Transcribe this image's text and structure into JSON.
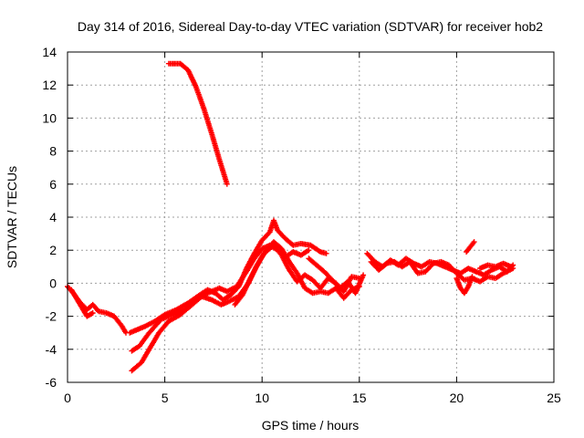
{
  "chart_data": {
    "type": "scatter",
    "title": "Day 314 of 2016, Sidereal Day-to-day VTEC variation (SDTVAR) for receiver hob2",
    "xlabel": "GPS time / hours",
    "ylabel": "SDTVAR / TECUs",
    "xlim": [
      0,
      25
    ],
    "ylim": [
      -6,
      14
    ],
    "x_ticks": [
      0,
      5,
      10,
      15,
      20,
      25
    ],
    "x_tick_labels": [
      "0",
      "5",
      "10",
      "15",
      "20",
      "25"
    ],
    "y_ticks": [
      -6,
      -4,
      -2,
      0,
      2,
      4,
      6,
      8,
      10,
      12,
      14
    ],
    "y_tick_labels": [
      "-6",
      "-4",
      "-2",
      "0",
      "2",
      "4",
      "6",
      "8",
      "10",
      "12",
      "14"
    ],
    "grid": true,
    "color": "#ff0000",
    "series": [
      {
        "name": "segment-1",
        "points": [
          [
            5.2,
            13.3
          ],
          [
            5.8,
            13.3
          ],
          [
            6.2,
            12.9
          ],
          [
            6.6,
            11.9
          ],
          [
            7.0,
            10.6
          ],
          [
            7.4,
            9.1
          ],
          [
            7.8,
            7.5
          ],
          [
            8.2,
            6.0
          ]
        ]
      },
      {
        "name": "segment-2",
        "points": [
          [
            0.0,
            -0.2
          ],
          [
            0.3,
            -0.6
          ],
          [
            0.6,
            -1.1
          ],
          [
            1.0,
            -1.6
          ],
          [
            1.3,
            -1.3
          ],
          [
            1.6,
            -1.7
          ],
          [
            2.0,
            -1.8
          ],
          [
            2.4,
            -2.0
          ],
          [
            2.8,
            -2.6
          ],
          [
            3.0,
            -3.0
          ]
        ]
      },
      {
        "name": "segment-3",
        "points": [
          [
            0.2,
            -0.4
          ],
          [
            0.5,
            -1.0
          ],
          [
            0.8,
            -1.6
          ],
          [
            1.0,
            -2.0
          ],
          [
            1.3,
            -1.8
          ]
        ]
      },
      {
        "name": "segment-4",
        "points": [
          [
            3.2,
            -3.0
          ],
          [
            3.6,
            -2.8
          ],
          [
            4.0,
            -2.6
          ],
          [
            4.5,
            -2.3
          ],
          [
            5.0,
            -1.9
          ],
          [
            5.6,
            -1.6
          ],
          [
            6.2,
            -1.2
          ],
          [
            6.8,
            -0.7
          ],
          [
            7.2,
            -0.4
          ],
          [
            7.6,
            -0.6
          ],
          [
            8.0,
            -1.0
          ],
          [
            8.4,
            -0.7
          ],
          [
            8.8,
            -0.2
          ],
          [
            9.2,
            0.9
          ],
          [
            9.6,
            1.8
          ],
          [
            10.0,
            2.6
          ],
          [
            10.4,
            3.1
          ],
          [
            10.6,
            3.8
          ],
          [
            10.8,
            3.2
          ],
          [
            11.2,
            2.7
          ],
          [
            11.6,
            2.3
          ],
          [
            12.0,
            2.4
          ],
          [
            12.5,
            2.3
          ],
          [
            13.0,
            1.9
          ],
          [
            13.3,
            1.8
          ]
        ]
      },
      {
        "name": "segment-5",
        "points": [
          [
            3.3,
            -4.1
          ],
          [
            3.7,
            -3.8
          ],
          [
            4.2,
            -3.0
          ],
          [
            4.8,
            -2.2
          ],
          [
            5.4,
            -1.9
          ],
          [
            6.0,
            -1.6
          ],
          [
            6.6,
            -1.0
          ],
          [
            7.2,
            -0.6
          ],
          [
            7.8,
            -0.3
          ],
          [
            8.2,
            -0.5
          ],
          [
            8.7,
            -0.2
          ],
          [
            9.2,
            0.7
          ],
          [
            9.6,
            1.5
          ],
          [
            10.0,
            2.1
          ],
          [
            10.4,
            2.3
          ],
          [
            10.8,
            2.0
          ],
          [
            11.2,
            1.6
          ],
          [
            11.6,
            1.9
          ],
          [
            12.0,
            1.7
          ],
          [
            12.4,
            2.0
          ]
        ]
      },
      {
        "name": "segment-6",
        "points": [
          [
            3.3,
            -5.3
          ],
          [
            3.8,
            -4.8
          ],
          [
            4.2,
            -4.0
          ],
          [
            4.7,
            -3.0
          ],
          [
            5.2,
            -2.3
          ],
          [
            5.8,
            -1.9
          ],
          [
            6.3,
            -1.4
          ],
          [
            6.9,
            -0.8
          ],
          [
            7.4,
            -1.0
          ],
          [
            7.9,
            -1.3
          ],
          [
            8.3,
            -1.1
          ],
          [
            8.8,
            -0.8
          ],
          [
            9.3,
            0.0
          ],
          [
            9.7,
            1.0
          ],
          [
            10.1,
            1.8
          ],
          [
            10.6,
            2.3
          ],
          [
            11.0,
            1.7
          ],
          [
            11.4,
            0.8
          ],
          [
            11.8,
            0.1
          ],
          [
            12.2,
            0.5
          ],
          [
            12.6,
            0.2
          ],
          [
            13.0,
            -0.3
          ],
          [
            13.4,
            0.3
          ],
          [
            13.8,
            0.0
          ],
          [
            14.2,
            -0.5
          ],
          [
            14.6,
            0.4
          ],
          [
            15.0,
            0.3
          ]
        ]
      },
      {
        "name": "segment-7",
        "points": [
          [
            8.6,
            -1.3
          ],
          [
            9.0,
            -0.7
          ],
          [
            9.4,
            0.3
          ],
          [
            9.8,
            1.2
          ],
          [
            10.2,
            2.0
          ],
          [
            10.6,
            2.5
          ],
          [
            11.0,
            2.1
          ],
          [
            11.4,
            1.3
          ],
          [
            11.8,
            0.6
          ],
          [
            12.2,
            -0.3
          ],
          [
            12.6,
            -0.6
          ],
          [
            13.0,
            -0.5
          ],
          [
            13.4,
            -0.6
          ],
          [
            13.8,
            -0.3
          ],
          [
            14.2,
            -0.9
          ],
          [
            14.6,
            -0.4
          ],
          [
            15.0,
            -0.2
          ]
        ]
      },
      {
        "name": "segment-8",
        "points": [
          [
            12.4,
            1.5
          ],
          [
            12.8,
            1.1
          ],
          [
            13.2,
            0.7
          ],
          [
            13.6,
            0.2
          ],
          [
            14.0,
            -0.3
          ],
          [
            14.4,
            0.1
          ],
          [
            14.8,
            -0.6
          ],
          [
            15.2,
            0.5
          ]
        ]
      },
      {
        "name": "segment-9",
        "points": [
          [
            15.4,
            1.8
          ],
          [
            15.8,
            1.3
          ],
          [
            16.2,
            1.0
          ],
          [
            16.6,
            1.4
          ],
          [
            17.0,
            1.1
          ],
          [
            17.4,
            1.5
          ],
          [
            17.8,
            1.2
          ],
          [
            18.2,
            1.0
          ],
          [
            18.6,
            1.3
          ],
          [
            19.0,
            1.2
          ],
          [
            19.4,
            1.0
          ],
          [
            19.8,
            0.8
          ],
          [
            20.2,
            0.6
          ],
          [
            20.6,
            0.9
          ],
          [
            21.0,
            0.7
          ],
          [
            21.4,
            0.5
          ],
          [
            21.8,
            0.8
          ],
          [
            22.2,
            1.0
          ],
          [
            22.6,
            0.7
          ],
          [
            22.9,
            1.1
          ]
        ]
      },
      {
        "name": "segment-10",
        "points": [
          [
            15.6,
            1.3
          ],
          [
            16.0,
            0.8
          ],
          [
            16.4,
            1.2
          ],
          [
            16.8,
            1.3
          ],
          [
            17.2,
            1.0
          ],
          [
            17.6,
            1.3
          ],
          [
            18.0,
            0.6
          ],
          [
            18.4,
            0.7
          ],
          [
            18.8,
            1.2
          ],
          [
            19.2,
            1.3
          ],
          [
            19.6,
            1.1
          ],
          [
            20.0,
            0.6
          ],
          [
            20.4,
            0.2
          ],
          [
            20.8,
            0.3
          ],
          [
            21.2,
            0.1
          ],
          [
            21.6,
            0.4
          ],
          [
            22.0,
            0.3
          ],
          [
            22.4,
            0.6
          ],
          [
            22.9,
            0.9
          ]
        ]
      },
      {
        "name": "segment-11",
        "points": [
          [
            20.0,
            0.3
          ],
          [
            20.2,
            -0.3
          ],
          [
            20.4,
            -0.6
          ],
          [
            20.6,
            -0.2
          ],
          [
            20.8,
            0.4
          ]
        ]
      },
      {
        "name": "segment-12",
        "points": [
          [
            20.5,
            1.9
          ],
          [
            20.7,
            2.2
          ],
          [
            20.9,
            2.5
          ]
        ]
      },
      {
        "name": "segment-13",
        "points": [
          [
            21.2,
            0.9
          ],
          [
            21.6,
            1.1
          ],
          [
            22.0,
            1.0
          ],
          [
            22.4,
            1.2
          ],
          [
            22.8,
            1.0
          ]
        ]
      }
    ]
  }
}
